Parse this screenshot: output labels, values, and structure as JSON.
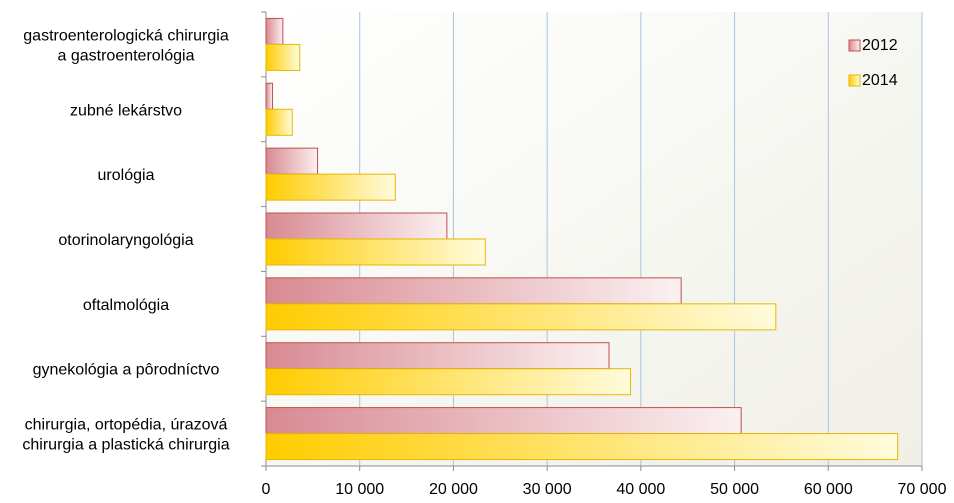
{
  "chart_data": {
    "type": "bar",
    "orientation": "horizontal",
    "categories": [
      "gastroenterologická chirurgia\na gastroenterológia",
      "zubné lekárstvo",
      "urológia",
      "otorinolaryngológia",
      "oftalmológia",
      "gynekológia a pôrodníctvo",
      "chirurgia, ortopédia, úrazová\nchirurgia a plastická chirurgia"
    ],
    "series": [
      {
        "name": "2012",
        "values": [
          1800,
          700,
          5500,
          19300,
          44300,
          36600,
          50700
        ]
      },
      {
        "name": "2014",
        "values": [
          3600,
          2800,
          13800,
          23400,
          54400,
          38900,
          67400
        ]
      }
    ],
    "xlim": [
      0,
      70000
    ],
    "xticks": [
      0,
      10000,
      20000,
      30000,
      40000,
      50000,
      60000,
      70000
    ],
    "xtick_labels": [
      "0",
      "10 000",
      "20 000",
      "30 000",
      "40 000",
      "50 000",
      "60 000",
      "70 000"
    ],
    "grid": true,
    "legend_position": "top-right",
    "colors": {
      "s2012_fill": "#d88a92",
      "s2012_stroke": "#c0504d",
      "s2014_fill": "#ffcc00",
      "s2014_stroke": "#e6b800",
      "gridline": "#a9c4dc"
    }
  }
}
